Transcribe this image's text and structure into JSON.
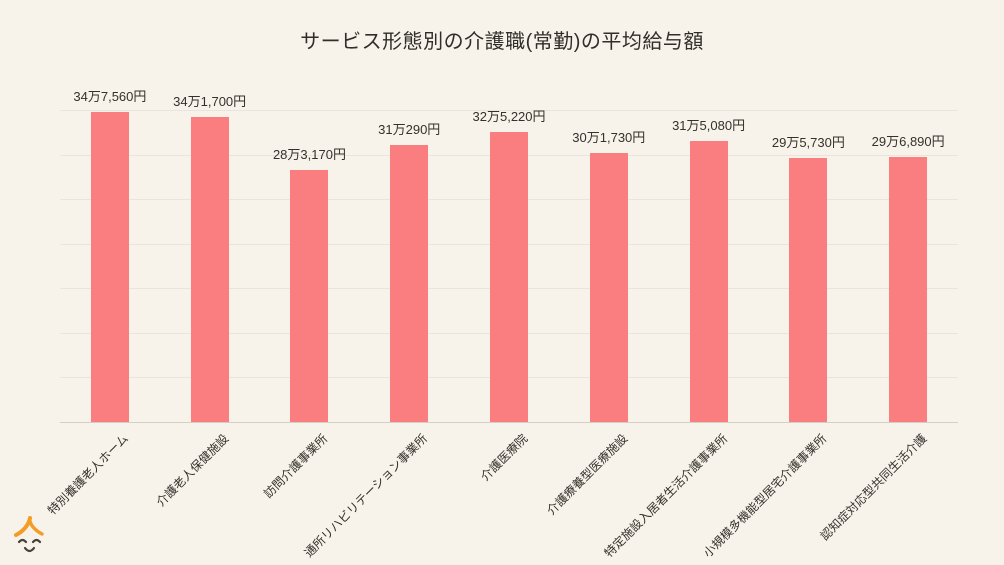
{
  "page": {
    "background_color": "#f7f3ea",
    "text_color": "#33312c"
  },
  "chart_data": {
    "type": "bar",
    "title": "サービス形態別の介護職(常勤)の平均給与額",
    "categories": [
      "特別養護老人ホーム",
      "介護老人保健施設",
      "訪問介護事業所",
      "通所リハビリテーション事業所",
      "介護医療院",
      "介護療養型医療施設",
      "特定施設入居者生活介護事業所",
      "小規模多機能型居宅介護事業所",
      "認知症対応型共同生活介護"
    ],
    "values": [
      347560,
      341700,
      283170,
      310290,
      325220,
      301730,
      315080,
      295730,
      296890
    ],
    "value_labels": [
      "34万7,560円",
      "34万1,700円",
      "28万3,170円",
      "31万290円",
      "32万5,220円",
      "30万1,730円",
      "31万5,080円",
      "29万5,730円",
      "29万6,890円"
    ],
    "xlabel": "",
    "ylabel": "",
    "ylim": [
      0,
      350000
    ],
    "grid_step": 50000,
    "grid": true,
    "yaxis_tick_labels_visible": false,
    "legend": "none",
    "xlabel_rotation_deg": 45,
    "bar_color": "#fa7d7f",
    "gridline_color": "#e9e5dc",
    "axis_line_color": "#d3cfc7"
  },
  "mascot": {
    "description": "smiling-face-with-orange-roof-logo",
    "roof_color": "#f39c26",
    "face_color": "#45433a"
  }
}
